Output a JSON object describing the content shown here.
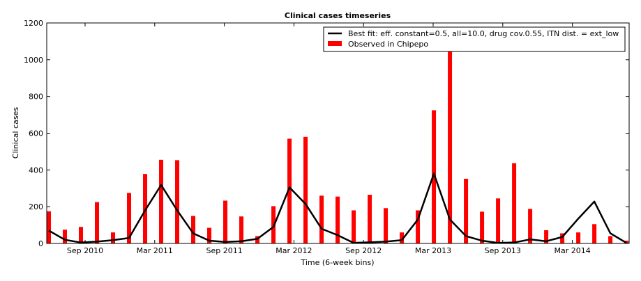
{
  "chart_data": {
    "type": "bar",
    "title": "Clinical cases timeseries",
    "xlabel": "Time (6-week bins)",
    "ylabel": "Clinical cases",
    "ylim": [
      0,
      1200
    ],
    "yticks": [
      0,
      200,
      400,
      600,
      800,
      1000,
      1200
    ],
    "xtick_labels": [
      "Sep 2010",
      "Mar 2011",
      "Sep 2011",
      "Mar 2012",
      "Sep 2012",
      "Mar 2013",
      "Sep 2013",
      "Mar 2014"
    ],
    "legend_position": "top-right",
    "series": [
      {
        "name": "Observed in Chipepo",
        "kind": "bar",
        "color": "#ff0000",
        "values": [
          175,
          75,
          90,
          225,
          60,
          275,
          378,
          455,
          453,
          150,
          85,
          233,
          147,
          40,
          203,
          570,
          580,
          260,
          255,
          180,
          265,
          192,
          60,
          180,
          725,
          1045,
          352,
          173,
          245,
          437,
          188,
          72,
          55,
          60,
          105,
          40,
          15
        ]
      },
      {
        "name": "Best fit: eff. constant=0.5, all=10.0, drug cov.0.55, ITN dist. = ext_low",
        "kind": "line",
        "color": "#000000",
        "values": [
          70,
          20,
          5,
          10,
          18,
          30,
          180,
          318,
          180,
          55,
          15,
          8,
          12,
          25,
          90,
          305,
          215,
          80,
          45,
          3,
          6,
          10,
          18,
          130,
          380,
          130,
          40,
          15,
          3,
          5,
          22,
          12,
          35,
          135,
          228,
          55,
          3
        ]
      }
    ]
  }
}
